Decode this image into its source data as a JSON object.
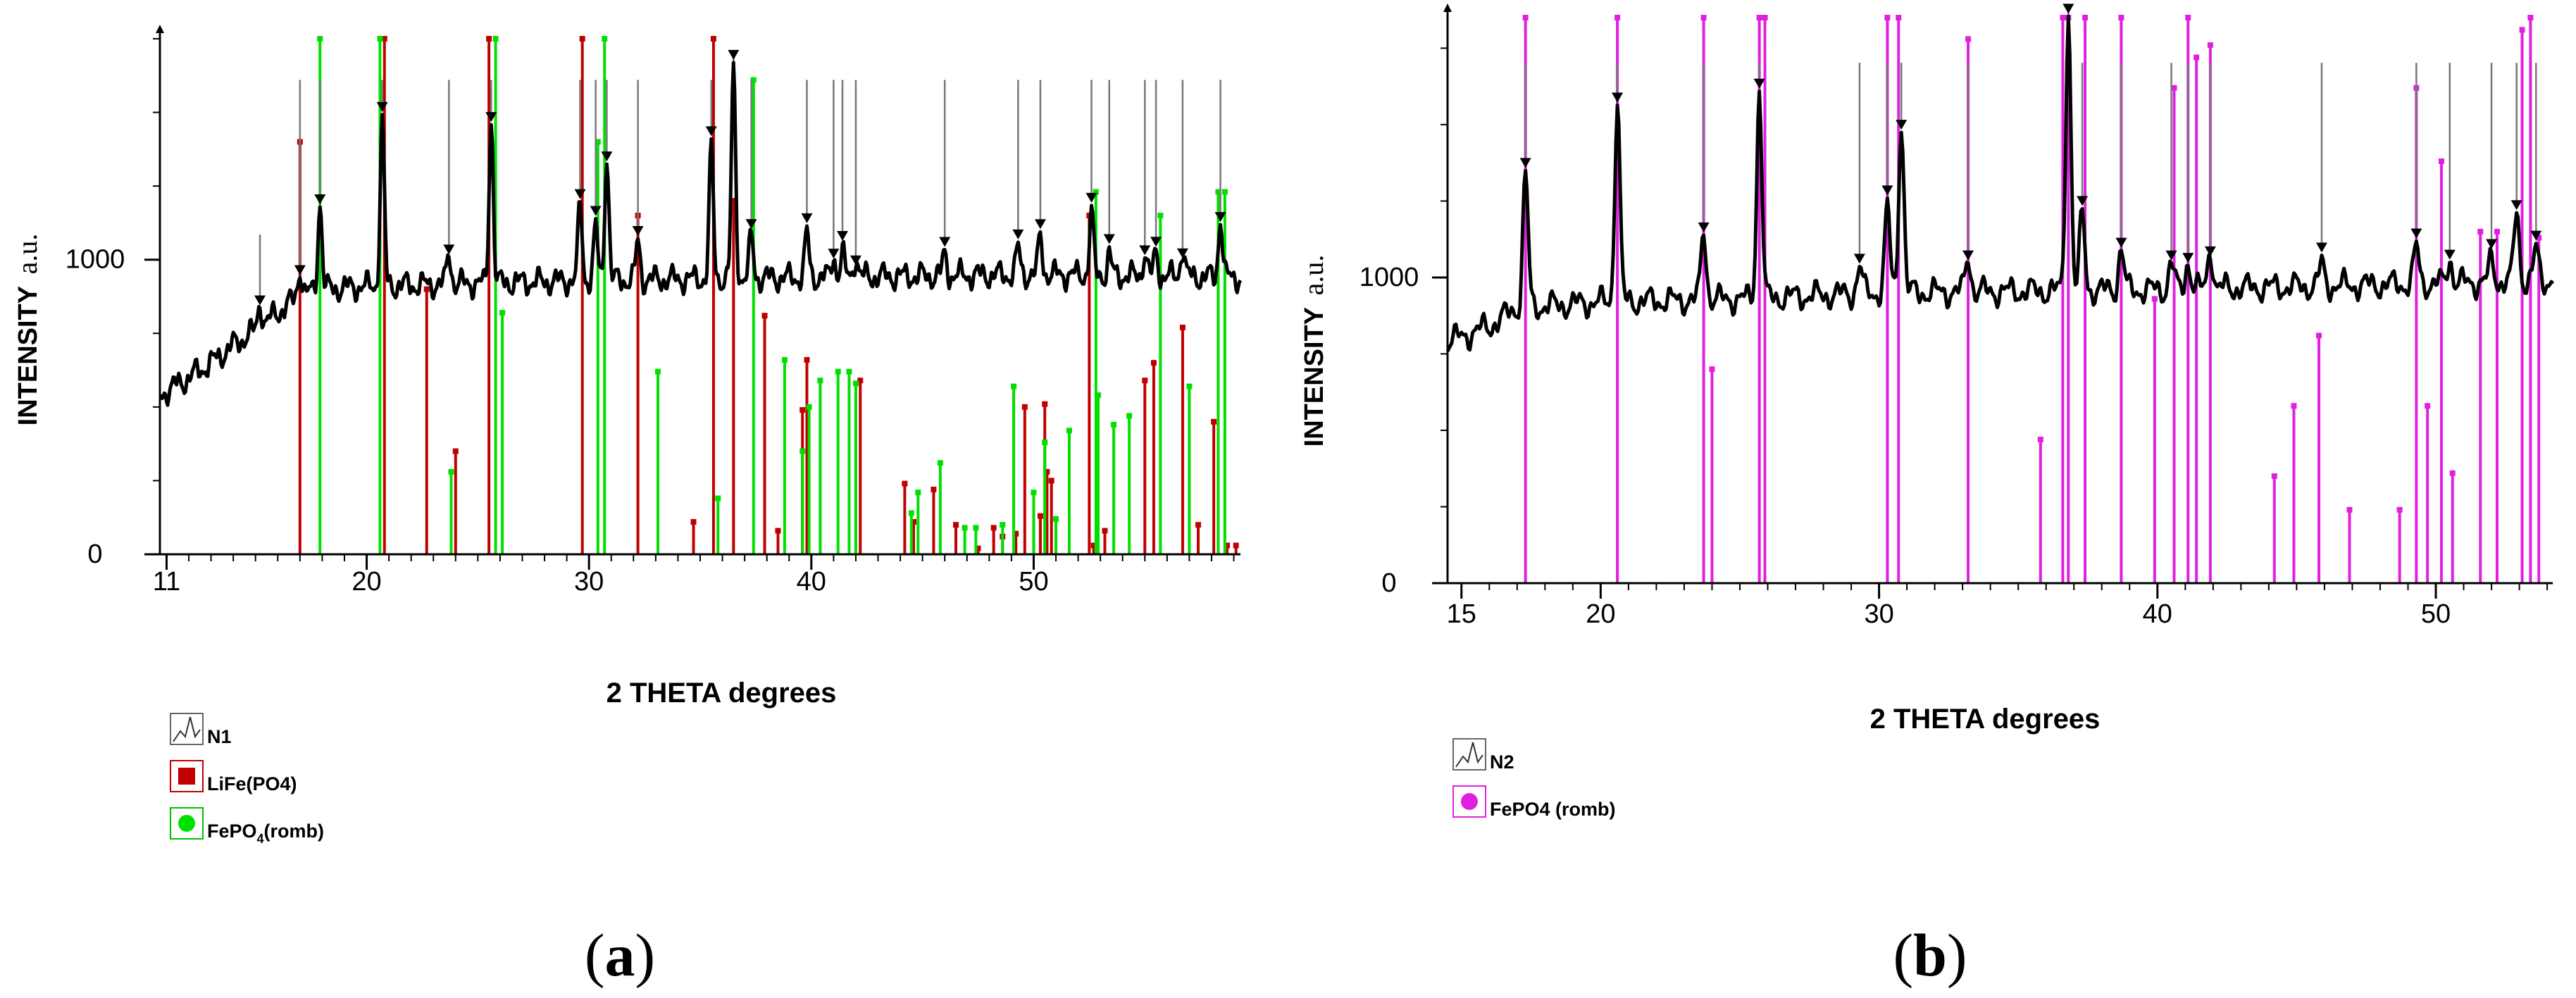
{
  "chart_data": [
    {
      "type": "line",
      "panel": "a",
      "caption": {
        "open": "(",
        "letter": "a",
        "close": ")"
      },
      "xlabel": "2 THETA degrees",
      "ylabel": "INTENSITY",
      "ylabel_unit": "a.u.",
      "xlim": [
        10.7,
        59.3
      ],
      "ylim": [
        0,
        1750
      ],
      "x_ticks": [
        11,
        20,
        30,
        40,
        50
      ],
      "x_tick_labels": [
        "11",
        "20",
        "30",
        "40",
        "50"
      ],
      "x_minor_step": 1,
      "y_ticks": [
        0,
        1000
      ],
      "y_tick_labels": [
        "0",
        "1000"
      ],
      "y_minor_step": 250,
      "trace_color": "#000000",
      "pattern_line": {
        "base": [
          [
            10.7,
            540
          ],
          [
            12,
            600
          ],
          [
            13,
            650
          ],
          [
            14,
            710
          ],
          [
            15,
            760
          ],
          [
            16,
            820
          ],
          [
            17,
            880
          ],
          [
            18,
            900
          ],
          [
            20,
            910
          ],
          [
            25,
            920
          ],
          [
            30,
            930
          ],
          [
            40,
            940
          ],
          [
            50,
            950
          ],
          [
            59.3,
            940
          ]
        ],
        "peaks": [
          [
            15.2,
            80
          ],
          [
            17,
            90
          ],
          [
            17.9,
            300
          ],
          [
            20.7,
            560
          ],
          [
            23.7,
            110
          ],
          [
            25.6,
            560
          ],
          [
            29.6,
            260
          ],
          [
            30.3,
            180
          ],
          [
            30.8,
            430
          ],
          [
            32.2,
            130
          ],
          [
            35.5,
            440
          ],
          [
            36.5,
            710
          ],
          [
            37.3,
            140
          ],
          [
            39.8,
            150
          ],
          [
            41,
            70
          ],
          [
            41.4,
            80
          ],
          [
            42,
            70
          ],
          [
            46,
            70
          ],
          [
            49.3,
            90
          ],
          [
            50.3,
            130
          ],
          [
            52.6,
            210
          ],
          [
            53.4,
            70
          ],
          [
            55,
            80
          ],
          [
            55.5,
            80
          ],
          [
            56.7,
            100
          ],
          [
            58.4,
            200
          ]
        ]
      },
      "series": [
        {
          "name": "N1",
          "kind": "pattern",
          "color": "#000000",
          "peak_markers": [
            15.2,
            17,
            17.9,
            20.7,
            23.7,
            25.6,
            29.6,
            30.3,
            30.8,
            32.2,
            35.5,
            36.5,
            37.3,
            39.8,
            41,
            41.4,
            42,
            46,
            49.3,
            50.3,
            52.6,
            53.4,
            55,
            55.5,
            56.7,
            58.4
          ]
        },
        {
          "name": "LiFe(PO4)",
          "kind": "reference",
          "color": "#c00000",
          "x": [
            17.0,
            20.8,
            22.7,
            24.0,
            25.5,
            29.7,
            32.2,
            34.7,
            35.6,
            36.5,
            37.9,
            38.5,
            39.6,
            39.8,
            42.2,
            44.2,
            44.6,
            45.5,
            46.5,
            47.5,
            48.2,
            48.6,
            49.2,
            49.6,
            50.3,
            50.5,
            50.6,
            50.8,
            52.5,
            52.7,
            53.2,
            55.0,
            55.4,
            56.7,
            57.4,
            58.1,
            58.7,
            59.1
          ],
          "y": [
            1400,
            1750,
            900,
            350,
            1750,
            1750,
            1150,
            110,
            1750,
            1200,
            810,
            80,
            490,
            660,
            590,
            240,
            110,
            220,
            100,
            20,
            90,
            60,
            70,
            500,
            130,
            510,
            280,
            250,
            1150,
            30,
            80,
            590,
            650,
            770,
            100,
            450,
            30,
            30
          ]
        },
        {
          "name": "FePO4(romb)",
          "kind": "reference",
          "color": "#00e000",
          "x": [
            17.9,
            20.6,
            23.8,
            25.8,
            26.1,
            30.4,
            30.7,
            33.1,
            35.8,
            37.4,
            38.8,
            39.6,
            39.9,
            40.4,
            41.2,
            41.7,
            42.0,
            44.5,
            44.8,
            45.8,
            46.9,
            47.4,
            48.6,
            49.1,
            50.0,
            50.5,
            51.0,
            51.6,
            52.8,
            52.9,
            53.6,
            54.3,
            55.7,
            57.0,
            58.3,
            58.6
          ],
          "y": [
            1750,
            1750,
            280,
            1750,
            820,
            1400,
            1750,
            620,
            190,
            1610,
            660,
            350,
            500,
            590,
            620,
            620,
            580,
            140,
            210,
            310,
            90,
            90,
            100,
            570,
            210,
            380,
            120,
            420,
            1230,
            540,
            440,
            470,
            1150,
            570,
            1230,
            1230
          ]
        }
      ],
      "legend": [
        {
          "name": "N1",
          "symbol": "pattern",
          "color": "#000000"
        },
        {
          "name": "LiFe(PO4)",
          "symbol": "square",
          "color": "#c00000"
        },
        {
          "name": "FePO",
          "sub": "4",
          "tail": "(romb)",
          "symbol": "circle",
          "color": "#00e000"
        }
      ]
    },
    {
      "type": "line",
      "panel": "b",
      "caption": {
        "open": "(",
        "letter": "b",
        "close": ")"
      },
      "xlabel": "2 THETA degrees",
      "ylabel": "INTENSITY",
      "ylabel_unit": "a.u.",
      "xlim": [
        14.5,
        54.2
      ],
      "ylim": [
        0,
        1850
      ],
      "x_ticks": [
        15,
        20,
        30,
        40,
        50
      ],
      "x_tick_labels": [
        "15",
        "20",
        "30",
        "40",
        "50"
      ],
      "x_minor_step": 1,
      "y_ticks": [
        0,
        1000
      ],
      "y_tick_labels": [
        "0",
        "1000"
      ],
      "y_minor_step": 250,
      "trace_color": "#000000",
      "pattern_line": {
        "base": [
          [
            14.5,
            790
          ],
          [
            16,
            840
          ],
          [
            17,
            900
          ],
          [
            20,
            920
          ],
          [
            25,
            930
          ],
          [
            30,
            950
          ],
          [
            40,
            960
          ],
          [
            50,
            980
          ],
          [
            54.2,
            990
          ]
        ],
        "peaks": [
          [
            17.3,
            440
          ],
          [
            20.6,
            660
          ],
          [
            23.7,
            230
          ],
          [
            25.7,
            680
          ],
          [
            29.3,
            90
          ],
          [
            30.3,
            280
          ],
          [
            30.8,
            560
          ],
          [
            33.2,
            120
          ],
          [
            36.8,
            910
          ],
          [
            37.3,
            250
          ],
          [
            38.7,
            140
          ],
          [
            40.5,
            90
          ],
          [
            41.1,
            90
          ],
          [
            41.9,
            130
          ],
          [
            45.9,
            70
          ],
          [
            49.3,
            120
          ],
          [
            50.5,
            80
          ],
          [
            52.0,
            70
          ],
          [
            52.9,
            230
          ],
          [
            53.6,
            100
          ]
        ]
      },
      "series": [
        {
          "name": "N2",
          "kind": "pattern",
          "color": "#000000",
          "peak_markers": [
            17.3,
            20.6,
            23.7,
            25.7,
            29.3,
            30.3,
            30.8,
            33.2,
            36.8,
            37.3,
            38.7,
            40.5,
            41.1,
            41.9,
            45.9,
            49.3,
            50.5,
            52.0,
            52.9,
            53.6
          ]
        },
        {
          "name": "FePO4 (romb)",
          "kind": "reference",
          "color": "#e020e0",
          "x": [
            17.3,
            20.6,
            23.7,
            24.0,
            25.7,
            25.9,
            30.3,
            30.7,
            33.2,
            35.8,
            36.6,
            36.8,
            37.4,
            38.7,
            39.9,
            40.6,
            41.1,
            41.4,
            41.9,
            44.2,
            44.9,
            45.8,
            46.9,
            48.7,
            49.3,
            49.7,
            50.2,
            50.6,
            51.6,
            52.2,
            53.1,
            53.4,
            53.7
          ],
          "y": [
            1850,
            1850,
            1850,
            700,
            1850,
            1850,
            1850,
            1850,
            1780,
            470,
            1850,
            1850,
            1850,
            1850,
            930,
            1620,
            1850,
            1720,
            1760,
            350,
            580,
            810,
            240,
            240,
            1620,
            580,
            1380,
            360,
            1150,
            1150,
            1810,
            1850,
            1130
          ]
        }
      ],
      "legend": [
        {
          "name": "N2",
          "symbol": "pattern",
          "color": "#000000"
        },
        {
          "name": "FePO4 (romb)",
          "symbol": "circle",
          "color": "#e020e0"
        }
      ]
    }
  ]
}
